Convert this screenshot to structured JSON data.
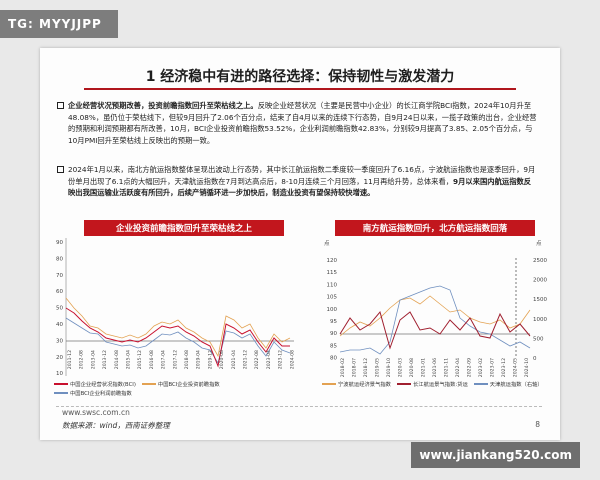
{
  "watermark_top": "TG: MYYJJPP",
  "watermark_bottom": "www.jiankang520.com",
  "title": "1 经济稳中有进的路径选择：保持韧性与激发潜力",
  "bullets": [
    {
      "lead": "企业经营状况预期改善，投资前瞻指数回升至荣枯线之上。",
      "body": "反映企业经营状况（主要是民营中小企业）的长江商学院BCI指数，2024年10月升至48.08%，虽仍位于荣枯线下，但较9月回升了2.06个百分点，结束了自4月以来的连续下行态势，自9月24日以来，一揽子政策的出台，企业经营的预期和利润预期都有所改善，10月，BCI企业投资前瞻指数53.52%，企业利润前瞻指数42.83%，分别较9月提高了3.85、2.05个百分点，与10月PMI回升至荣枯线上反映出的预期一致。"
    },
    {
      "body": "2024年1月以来，南北方航运指数整体呈现出波动上行态势，其中长江航运指数二季度较一季度回升了6.16点，宁波航运指数也是逐季回升，9月份单月出现了6.1点的大幅回升，天津航运指数在7月到达高点后，8-10月连续三个月回落，11月再给升势，总体来看，",
      "emph": "9月以来国内航运指数反映出我国运输业活跃度有所回升，后续产销循环进一步加快后，制造业投资有望保持较快增速。"
    }
  ],
  "chart_left": {
    "panel_title": "企业投资前瞻指数回升至荣枯线之上",
    "y_ticks": [
      "90",
      "80",
      "70",
      "60",
      "50",
      "40",
      "30",
      "20",
      "10"
    ],
    "x_labels": [
      "2011-12",
      "2012-08",
      "2013-04",
      "2013-12",
      "2014-08",
      "2015-04",
      "2015-12",
      "2016-08",
      "2017-04",
      "2017-12",
      "2018-08",
      "2019-04",
      "2019-12",
      "2020-08",
      "2021-04",
      "2021-12",
      "2022-08",
      "2023-04",
      "2023-12",
      "2024-08"
    ],
    "legend": [
      {
        "label": "中国企业经营状况指数(BCI)",
        "color": "#c8102e"
      },
      {
        "label": "中国BCI企业投资前瞻指数",
        "color": "#e3a252"
      },
      {
        "label": "中国BCI企业利润前瞻指数",
        "color": "#6f8fbf"
      }
    ]
  },
  "chart_right": {
    "panel_title": "南方航运指数回升，北方航运指数回落",
    "unit_left": "点",
    "unit_right": "点",
    "y_left_ticks": [
      "120",
      "115",
      "110",
      "105",
      "100",
      "95",
      "90",
      "85",
      "80"
    ],
    "y_right_ticks": [
      "2500",
      "2000",
      "1500",
      "1000",
      "500",
      "0"
    ],
    "x_labels": [
      "2018-02",
      "2018-07",
      "2018-12",
      "2019-05",
      "2019-10",
      "2020-03",
      "2020-08",
      "2021-01",
      "2021-06",
      "2021-11",
      "2022-04",
      "2022-09",
      "2023-02",
      "2023-07",
      "2023-12",
      "2024-05",
      "2024-10"
    ],
    "legend": [
      {
        "label": "宁波航运经济景气指数",
        "color": "#e3a252"
      },
      {
        "label": "长江航运景气指数:货运",
        "color": "#a01f2f"
      },
      {
        "label": "天津航运指数（右轴）",
        "color": "#6f8fbf"
      }
    ]
  },
  "footer": {
    "site": "www.swsc.com.cn",
    "source": "数据来源：wind，西南证券整理",
    "page": "8"
  }
}
